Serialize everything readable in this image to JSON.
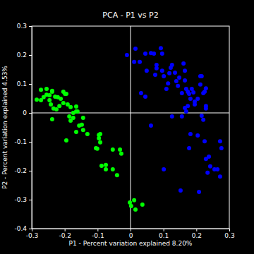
{
  "chart_data": {
    "type": "scatter",
    "title": "PCA - P1 vs P2",
    "x_label": "P1 - Percent variation explained 8.20%",
    "y_label": "P2 - Percent variation explained 4.53%",
    "xlim": [
      -0.3,
      0.3
    ],
    "ylim": [
      -0.4,
      0.3
    ],
    "xticks": [
      -0.3,
      -0.2,
      -0.1,
      0,
      0.1,
      0.2,
      0.3
    ],
    "yticks": [
      -0.4,
      -0.3,
      -0.2,
      -0.1,
      0,
      0.1,
      0.2,
      0.3
    ],
    "grid": false,
    "reference_lines": {
      "x": [
        0
      ],
      "y": [
        0
      ]
    },
    "series": [
      {
        "color": "#00ff00",
        "marker": "circle",
        "x": [
          -0.285,
          -0.272,
          -0.264,
          -0.255,
          -0.246,
          -0.238,
          -0.272,
          -0.255,
          -0.238,
          -0.246,
          -0.229,
          -0.221,
          -0.212,
          -0.242,
          -0.234,
          -0.225,
          -0.238,
          -0.216,
          -0.204,
          -0.199,
          -0.204,
          -0.195,
          -0.191,
          -0.182,
          -0.174,
          -0.186,
          -0.182,
          -0.174,
          -0.165,
          -0.165,
          -0.161,
          -0.156,
          -0.165,
          -0.195,
          -0.144,
          -0.148,
          -0.144,
          -0.131,
          -0.105,
          -0.096,
          -0.092,
          -0.096,
          -0.092,
          -0.101,
          -0.075,
          -0.075,
          -0.088,
          -0.054,
          -0.032,
          -0.028,
          -0.054,
          -0.041,
          -0.002,
          0.002,
          0.011,
          0.015,
          0.036
        ],
        "values": [
          0.046,
          0.044,
          0.054,
          0.063,
          0.061,
          0.076,
          0.08,
          0.083,
          0.073,
          0.044,
          0.056,
          0.054,
          0.049,
          0.029,
          0.015,
          0.012,
          -0.022,
          0.024,
          0.034,
          0.066,
          0.073,
          0.066,
          0.029,
          0.02,
          0.0,
          -0.012,
          -0.027,
          -0.017,
          0.022,
          0.005,
          0.005,
          -0.044,
          -0.066,
          -0.095,
          -0.059,
          -0.041,
          -0.017,
          -0.073,
          -0.122,
          -0.076,
          -0.073,
          -0.088,
          -0.102,
          -0.124,
          -0.18,
          -0.195,
          -0.183,
          -0.127,
          -0.127,
          -0.141,
          -0.195,
          -0.215,
          -0.31,
          -0.322,
          -0.302,
          -0.334,
          -0.317
        ]
      },
      {
        "color": "#0000ff",
        "marker": "circle",
        "x": [
          -0.011,
          0.011,
          0.015,
          0.028,
          0.049,
          0.045,
          0.062,
          0.071,
          0.079,
          0.079,
          0.075,
          0.092,
          0.096,
          0.101,
          0.096,
          0.109,
          0.114,
          0.118,
          0.122,
          0.126,
          0.135,
          0.139,
          0.144,
          0.148,
          0.126,
          0.156,
          0.161,
          0.165,
          0.165,
          0.169,
          0.174,
          0.156,
          0.165,
          0.174,
          0.178,
          0.182,
          0.186,
          0.191,
          0.195,
          0.169,
          0.182,
          0.178,
          0.195,
          0.204,
          0.212,
          0.216,
          0.221,
          0.225,
          0.229,
          0.229,
          0.212,
          0.216,
          0.221,
          0.229,
          0.225,
          0.229,
          0.234,
          0.238,
          0.242,
          0.255,
          0.264,
          0.272,
          0.272,
          0.276,
          0.204,
          0.208,
          0.152,
          0.101,
          0.062,
          0.032,
          0.045
        ],
        "values": [
          0.2,
          0.176,
          0.222,
          0.176,
          0.146,
          0.205,
          0.207,
          0.205,
          0.166,
          0.154,
          0.132,
          0.224,
          0.205,
          0.127,
          0.146,
          0.083,
          0.102,
          0.137,
          0.156,
          0.166,
          0.139,
          0.11,
          0.093,
          0.122,
          -0.012,
          -0.012,
          0.171,
          0.146,
          0.112,
          0.083,
          0.073,
          0.068,
          0.017,
          0.024,
          0.066,
          0.049,
          0.083,
          0.071,
          0.039,
          0.005,
          -0.073,
          -0.122,
          0.029,
          0.049,
          0.127,
          0.127,
          0.068,
          0.073,
          0.085,
          0.024,
          0.098,
          -0.01,
          -0.024,
          0.015,
          -0.098,
          -0.159,
          -0.207,
          -0.151,
          -0.185,
          -0.195,
          -0.195,
          -0.22,
          -0.098,
          -0.122,
          -0.078,
          -0.273,
          -0.268,
          -0.195,
          -0.044,
          0.068,
          0.056
        ]
      }
    ]
  }
}
